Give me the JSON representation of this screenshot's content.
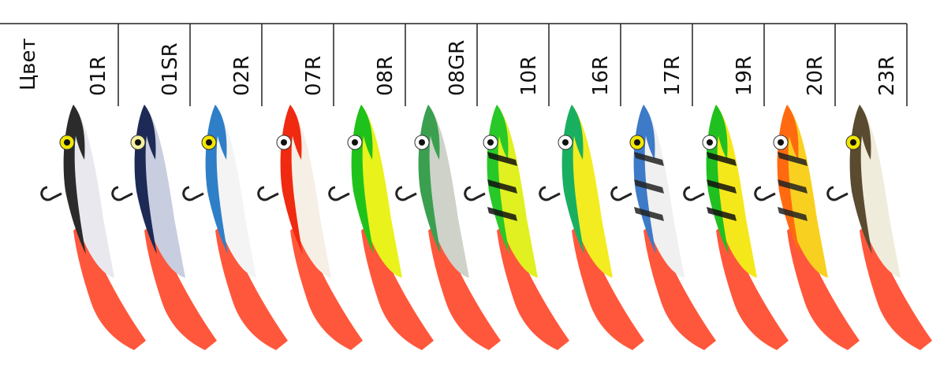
{
  "header_label": "Цвет",
  "colors": [
    "01R",
    "01SR",
    "02R",
    "07R",
    "08R",
    "08GR",
    "10R",
    "16R",
    "17R",
    "19R",
    "20R",
    "23R"
  ]
}
